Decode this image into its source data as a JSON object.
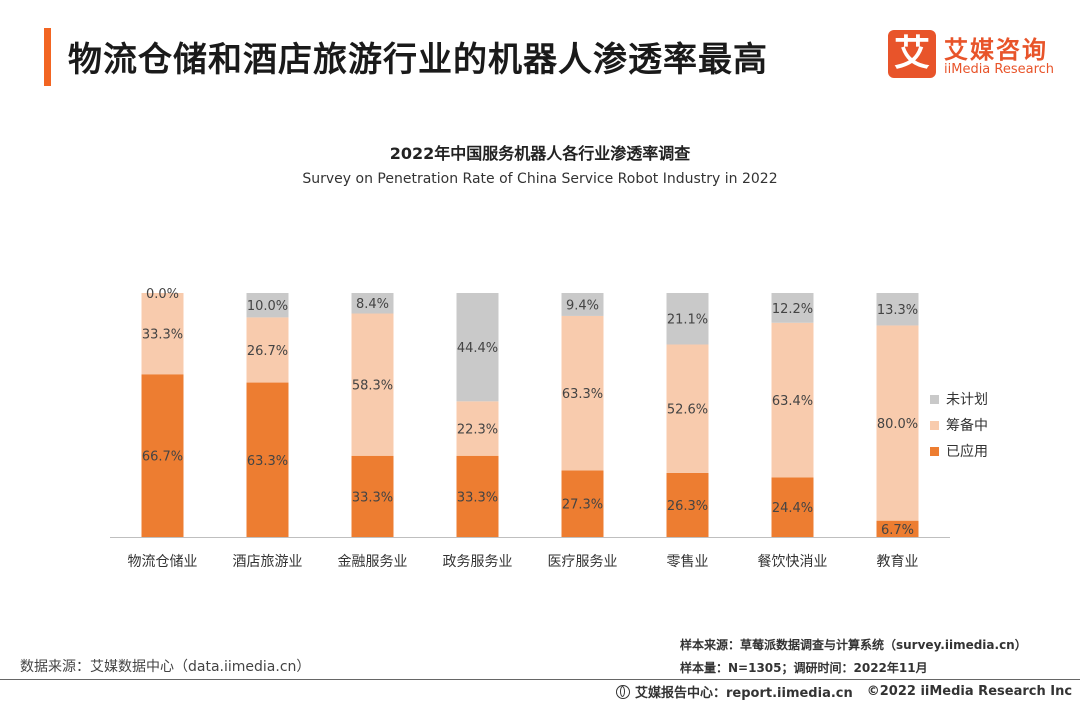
{
  "header": {
    "title": "物流仓储和酒店旅游行业的机器人渗透率最高",
    "logo_mark": "艾",
    "logo_cn": "艾媒咨询",
    "logo_en": "iiMedia Research"
  },
  "chart_data": {
    "type": "bar",
    "stacked": true,
    "title": "2022年中国服务机器人各行业渗透率调查",
    "subtitle": "Survey on Penetration Rate of China Service Robot Industry in 2022",
    "categories": [
      "物流仓储业",
      "酒店旅游业",
      "金融服务业",
      "政务服务业",
      "医疗服务业",
      "零售业",
      "餐饮快消业",
      "教育业"
    ],
    "series": [
      {
        "name": "已应用",
        "color": "#ed7d31",
        "values": [
          66.7,
          63.3,
          33.3,
          33.3,
          27.3,
          26.3,
          24.4,
          6.7
        ]
      },
      {
        "name": "筹备中",
        "color": "#f8cbad",
        "values": [
          33.3,
          26.7,
          58.3,
          22.3,
          63.3,
          52.6,
          63.4,
          80.0
        ]
      },
      {
        "name": "未计划",
        "color": "#c9c9c9",
        "values": [
          0.0,
          10.0,
          8.4,
          44.4,
          9.4,
          21.1,
          12.2,
          13.3
        ]
      }
    ],
    "legend_order": [
      "未计划",
      "筹备中",
      "已应用"
    ],
    "legend_position": "right",
    "ylim": [
      0,
      100
    ],
    "value_suffix": "%"
  },
  "footer": {
    "source_left": "数据来源：艾媒数据中心（data.iimedia.cn）",
    "sample_source": "样本来源：草莓派数据调查与计算系统（survey.iimedia.cn）",
    "sample_size": "样本量：N=1305；调研时间：2022年11月",
    "report_center": "艾媒报告中心：report.iimedia.cn",
    "copyright": "©2022  iiMedia Research  Inc"
  }
}
